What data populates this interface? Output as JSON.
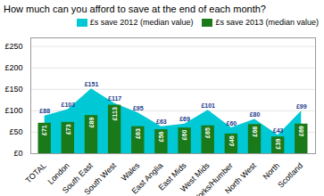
{
  "chart_data": {
    "type": "bar",
    "title": "How much can you afford to save at the end of each month?",
    "categories": [
      "TOTAL",
      "London",
      "South East",
      "South West",
      "Wales",
      "East Anglia",
      "East Mids",
      "West Mids",
      "Yorks/Humber",
      "North West",
      "North",
      "Scotland"
    ],
    "series": [
      {
        "name": "£s save 2012 (median value)",
        "type": "area",
        "color": "#00c8d4",
        "values": [
          88,
          103,
          151,
          117,
          95,
          63,
          69,
          101,
          60,
          80,
          43,
          99
        ],
        "value_labels": [
          "£88",
          "£103",
          "£151",
          "£117",
          "£95",
          "£63",
          "£69",
          "£101",
          "£60",
          "£80",
          "£43",
          "£99"
        ]
      },
      {
        "name": "£s save 2013 (median value)",
        "type": "bar",
        "color": "#1a7a1a",
        "values": [
          71,
          73,
          89,
          113,
          63,
          56,
          60,
          65,
          46,
          68,
          39,
          69
        ],
        "value_labels": [
          "£71",
          "£73",
          "£89",
          "£113",
          "£63",
          "£56",
          "£60",
          "£65",
          "£46",
          "£68",
          "£39",
          "£69"
        ]
      }
    ],
    "ylim": [
      0,
      270
    ],
    "yticks": [
      {
        "value": 0,
        "label": "£0"
      },
      {
        "value": 50,
        "label": "£50"
      },
      {
        "value": 100,
        "label": "£100"
      },
      {
        "value": 150,
        "label": "£150"
      },
      {
        "value": 200,
        "label": "£200"
      },
      {
        "value": 250,
        "label": "£250"
      }
    ],
    "grid": true,
    "legend": "upper right",
    "data_labels": true
  }
}
